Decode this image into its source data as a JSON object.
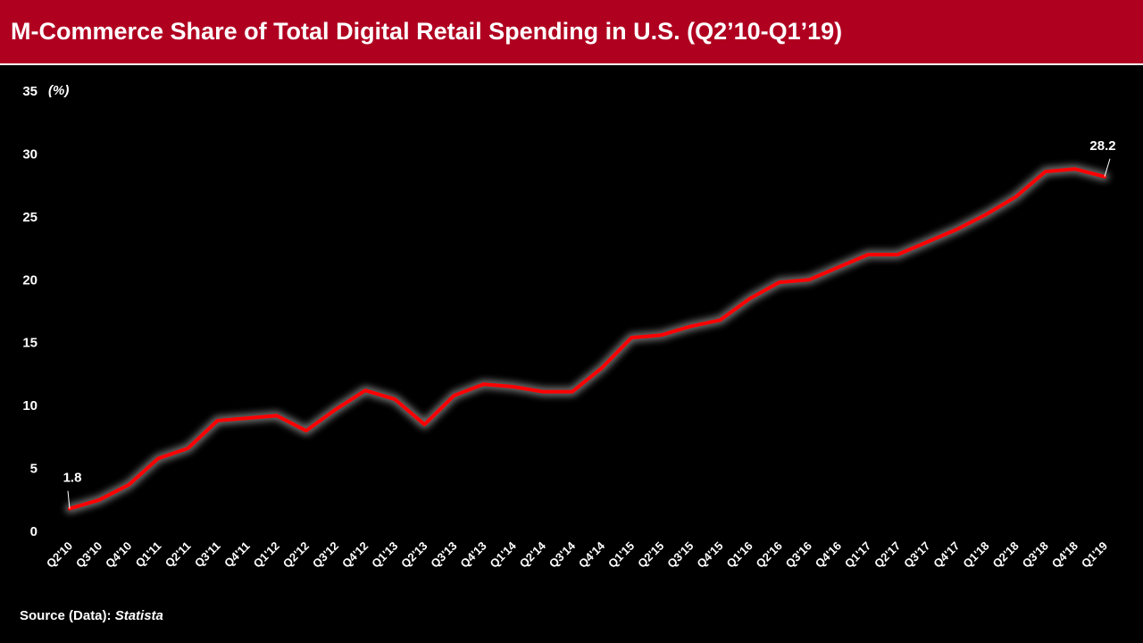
{
  "header": {
    "title": "M-Commerce Share of Total Digital Retail Spending in U.S. (Q2’10-Q1’19)"
  },
  "footer": {
    "source_label": "Source (Data):",
    "source_value": "Statista"
  },
  "colors": {
    "title_bg": "#b00020",
    "background": "#000000",
    "line": "#ff0000",
    "glow": "#888888",
    "text": "#ffffff"
  },
  "chart_data": {
    "type": "line",
    "title": "",
    "xlabel": "",
    "ylabel": "(%)",
    "ylim": [
      0,
      35
    ],
    "yticks": [
      0,
      5,
      10,
      15,
      20,
      25,
      30,
      35
    ],
    "grid": false,
    "legend": "none",
    "categories": [
      "Q2'10",
      "Q3'10",
      "Q4'10",
      "Q1'11",
      "Q2'11",
      "Q3'11",
      "Q4'11",
      "Q1'12",
      "Q2'12",
      "Q3'12",
      "Q4'12",
      "Q1'13",
      "Q2'13",
      "Q3'13",
      "Q4'13",
      "Q1'14",
      "Q2'14",
      "Q3'14",
      "Q4'14",
      "Q1'15",
      "Q2'15",
      "Q3'15",
      "Q4'15",
      "Q1'16",
      "Q2'16",
      "Q3'16",
      "Q4'16",
      "Q1'17",
      "Q2'17",
      "Q3'17",
      "Q4'17",
      "Q1'18",
      "Q2'18",
      "Q3'18",
      "Q4'18",
      "Q1'19"
    ],
    "series": [
      {
        "values": [
          1.8,
          2.5,
          3.7,
          5.8,
          6.6,
          8.8,
          9.0,
          9.2,
          8.0,
          9.7,
          11.2,
          10.5,
          8.5,
          10.8,
          11.7,
          11.5,
          11.1,
          11.1,
          13.0,
          15.4,
          15.6,
          16.3,
          16.8,
          18.5,
          19.8,
          20.0,
          21.0,
          22.0,
          22.0,
          23.0,
          24.0,
          25.2,
          26.6,
          28.6,
          28.8,
          28.2
        ]
      }
    ],
    "annotations": [
      {
        "index": 0,
        "label": "1.8"
      },
      {
        "index": 35,
        "label": "28.2"
      }
    ]
  }
}
